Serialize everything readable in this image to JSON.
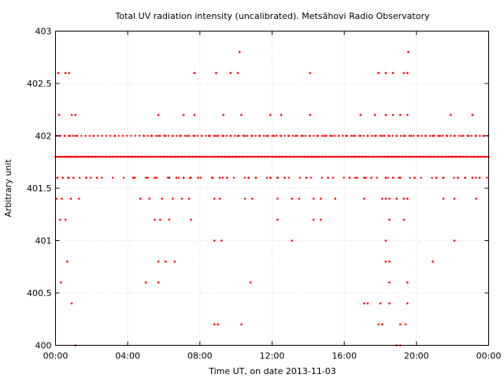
{
  "chart_data": {
    "type": "scatter",
    "title": "Total UV radiation intensity (uncalibrated). Metsähovi Radio Observatory",
    "xlabel": "Time UT, on date 2013-11-03",
    "ylabel": "Arbitrary unit",
    "xlim": [
      0,
      24
    ],
    "ylim": [
      400,
      403
    ],
    "x_tick_labels": [
      "00:00",
      "04:00",
      "08:00",
      "12:00",
      "16:00",
      "20:00",
      "00:00"
    ],
    "y_tick_labels": [
      "400",
      "400.5",
      "401",
      "401.5",
      "402",
      "402.5",
      "403"
    ],
    "grid": true,
    "marker_color": "#ff0000",
    "series": [
      {
        "x": [
          0.0,
          0.15,
          0.3,
          0.45,
          0.6,
          0.75,
          0.9,
          1.05,
          1.2,
          1.4,
          1.6,
          1.8,
          2.0,
          2.2,
          2.4,
          2.6,
          2.8,
          3.0,
          3.2,
          3.4,
          3.6,
          3.8,
          4.0,
          4.2,
          4.4,
          4.6,
          4.8,
          5.0,
          5.2,
          5.4,
          5.6,
          5.8,
          6.0,
          6.2,
          6.4,
          6.6,
          6.8,
          7.0,
          7.2,
          7.4,
          7.6,
          7.8,
          8.0,
          8.2,
          8.4,
          8.6,
          8.8,
          9.0,
          9.2,
          9.4,
          9.6,
          9.8,
          10.0,
          10.2,
          10.4,
          10.6,
          10.8,
          11.0,
          11.2,
          11.4,
          11.6,
          11.8,
          12.0,
          12.2,
          12.4,
          12.6,
          12.8,
          13.0,
          13.2,
          13.4,
          13.6,
          13.8,
          14.0,
          14.2,
          14.4,
          14.6,
          14.8,
          15.0,
          15.2,
          15.4,
          15.6,
          15.8,
          16.0,
          16.2,
          16.4,
          16.6,
          16.8,
          17.0,
          17.2,
          17.4,
          17.6,
          17.8,
          18.0,
          18.2,
          18.4,
          18.6,
          18.8,
          19.0,
          19.2,
          19.4,
          19.6,
          19.8,
          20.0,
          20.2,
          20.4,
          20.6,
          20.8,
          21.0,
          21.2,
          21.4,
          21.6,
          21.8,
          22.0,
          22.2,
          22.4,
          22.6,
          22.8,
          23.0,
          23.2,
          23.4,
          23.6,
          23.8,
          24.0,
          0.2,
          0.5,
          0.8,
          1.1,
          2.1,
          3.3,
          4.9,
          5.3,
          5.7,
          6.1,
          6.5,
          6.9,
          7.3,
          7.7,
          8.1,
          8.5,
          8.9,
          9.3,
          9.7,
          10.1,
          10.5,
          10.9,
          11.3,
          11.7,
          12.1,
          12.5,
          12.9,
          13.3,
          13.7,
          14.1,
          14.5,
          14.9,
          15.3,
          15.7,
          16.1,
          16.5,
          16.9,
          17.3,
          17.7,
          18.1,
          18.5,
          18.9,
          19.3,
          19.7,
          20.1,
          20.5,
          20.9,
          21.3,
          21.7,
          22.1,
          22.5,
          22.9,
          23.3,
          23.7,
          0.1,
          0.4,
          0.7,
          1.0,
          1.7,
          2.3,
          4.3,
          5.1,
          5.5,
          6.3,
          6.7,
          7.1,
          7.5,
          7.9,
          8.7,
          9.1,
          9.5,
          10.7,
          11.1,
          11.9,
          12.3,
          12.7,
          13.9,
          15.1,
          16.3,
          16.7,
          17.1,
          17.5,
          18.3,
          18.7,
          19.1,
          19.9,
          21.1,
          21.5,
          22.3,
          22.7,
          23.1,
          23.5,
          0.2,
          0.9,
          1.1,
          5.7,
          7.1,
          7.7,
          9.3,
          10.3,
          11.9,
          12.5,
          14.1,
          16.9,
          17.7,
          18.3,
          18.7,
          19.1,
          19.5,
          21.9,
          23.1,
          0.05,
          0.35,
          0.85,
          1.3,
          4.7,
          5.2,
          5.9,
          6.5,
          7.0,
          7.4,
          8.8,
          9.1,
          10.5,
          10.9,
          12.3,
          13.1,
          13.5,
          14.3,
          14.7,
          15.5,
          17.1,
          18.1,
          18.3,
          18.5,
          18.9,
          19.3,
          19.5,
          21.5,
          22.1,
          23.3,
          0.15,
          0.55,
          0.75,
          7.7,
          8.9,
          9.7,
          10.1,
          10.2,
          14.1,
          17.9,
          18.3,
          18.7,
          19.3,
          19.5,
          19.55,
          0.25,
          0.55,
          5.5,
          5.8,
          6.3,
          7.5,
          8.8,
          9.2,
          12.3,
          13.1,
          14.3,
          14.7,
          18.3,
          18.5,
          19.3,
          22.1,
          0.65,
          5.7,
          6.1,
          6.6,
          18.3,
          18.5,
          20.9,
          0.3,
          5.0,
          5.7,
          10.8,
          18.5,
          19.5,
          0.9,
          17.1,
          17.3,
          18.0,
          18.5,
          19.5,
          8.8,
          9.0,
          10.3,
          17.9,
          18.1,
          19.1,
          19.4,
          1.1,
          18.9,
          19.1
        ],
        "y": [
          401.8,
          401.8,
          401.8,
          401.8,
          401.8,
          401.8,
          401.8,
          401.8,
          401.8,
          401.8,
          401.8,
          401.8,
          401.8,
          401.8,
          401.8,
          401.8,
          401.8,
          401.8,
          401.8,
          401.8,
          401.8,
          401.8,
          401.8,
          401.8,
          401.8,
          401.8,
          401.8,
          401.8,
          401.8,
          401.8,
          401.8,
          401.8,
          401.8,
          401.8,
          401.8,
          401.8,
          401.8,
          401.8,
          401.8,
          401.8,
          401.8,
          401.8,
          401.8,
          401.8,
          401.8,
          401.8,
          401.8,
          401.8,
          401.8,
          401.8,
          401.8,
          401.8,
          401.8,
          401.8,
          401.8,
          401.8,
          401.8,
          401.8,
          401.8,
          401.8,
          401.8,
          401.8,
          401.8,
          401.8,
          401.8,
          401.8,
          401.8,
          401.8,
          401.8,
          401.8,
          401.8,
          401.8,
          401.8,
          401.8,
          401.8,
          401.8,
          401.8,
          401.8,
          401.8,
          401.8,
          401.8,
          401.8,
          401.8,
          401.8,
          401.8,
          401.8,
          401.8,
          401.8,
          401.8,
          401.8,
          401.8,
          401.8,
          401.8,
          401.8,
          401.8,
          401.8,
          401.8,
          401.8,
          401.8,
          401.8,
          401.8,
          401.8,
          401.8,
          401.8,
          401.8,
          401.8,
          401.8,
          401.8,
          401.8,
          401.8,
          401.8,
          401.8,
          401.8,
          401.8,
          401.8,
          401.8,
          401.8,
          401.8,
          401.8,
          401.8,
          401.8,
          401.8,
          401.8,
          402.0,
          402.0,
          402.0,
          402.0,
          402.0,
          402.0,
          402.0,
          402.0,
          402.0,
          402.0,
          402.0,
          402.0,
          402.0,
          402.0,
          402.0,
          402.0,
          402.0,
          402.0,
          402.0,
          402.0,
          402.0,
          402.0,
          402.0,
          402.0,
          402.0,
          402.0,
          402.0,
          402.0,
          402.0,
          402.0,
          402.0,
          402.0,
          402.0,
          402.0,
          402.0,
          402.0,
          402.0,
          402.0,
          402.0,
          402.0,
          402.0,
          402.0,
          402.0,
          402.0,
          402.0,
          402.0,
          402.0,
          402.0,
          402.0,
          402.0,
          402.0,
          402.0,
          402.0,
          402.0,
          401.6,
          401.6,
          401.6,
          401.6,
          401.6,
          401.6,
          401.6,
          401.6,
          401.6,
          401.6,
          401.6,
          401.6,
          401.6,
          401.6,
          401.6,
          401.6,
          401.6,
          401.6,
          401.6,
          401.6,
          401.6,
          401.6,
          401.6,
          401.6,
          401.6,
          401.6,
          401.6,
          401.6,
          401.6,
          401.6,
          401.6,
          401.6,
          401.6,
          401.6,
          401.6,
          401.6,
          401.6,
          401.6,
          402.2,
          402.2,
          402.2,
          402.2,
          402.2,
          402.2,
          402.2,
          402.2,
          402.2,
          402.2,
          402.2,
          402.2,
          402.2,
          402.2,
          402.2,
          402.2,
          402.2,
          402.2,
          402.2,
          401.4,
          401.4,
          401.4,
          401.4,
          401.4,
          401.4,
          401.4,
          401.4,
          401.4,
          401.4,
          401.4,
          401.4,
          401.4,
          401.4,
          401.4,
          401.4,
          401.4,
          401.4,
          401.4,
          401.4,
          401.4,
          401.4,
          401.4,
          401.4,
          401.4,
          401.4,
          401.4,
          401.4,
          401.4,
          401.4,
          402.6,
          402.6,
          402.6,
          402.6,
          402.6,
          402.6,
          402.6,
          402.8,
          402.6,
          402.6,
          402.6,
          402.6,
          402.6,
          402.6,
          402.8,
          401.2,
          401.2,
          401.2,
          401.2,
          401.2,
          401.2,
          401.0,
          401.0,
          401.2,
          401.0,
          401.2,
          401.2,
          401.0,
          401.2,
          401.2,
          401.0,
          400.8,
          400.8,
          400.8,
          400.8,
          400.8,
          400.8,
          400.8,
          400.6,
          400.6,
          400.6,
          400.6,
          400.6,
          400.6,
          400.4,
          400.4,
          400.4,
          400.4,
          400.4,
          400.4,
          400.2,
          400.2,
          400.2,
          400.2,
          400.2,
          400.2,
          400.2,
          400.0,
          400.0,
          400.0
        ]
      }
    ]
  }
}
